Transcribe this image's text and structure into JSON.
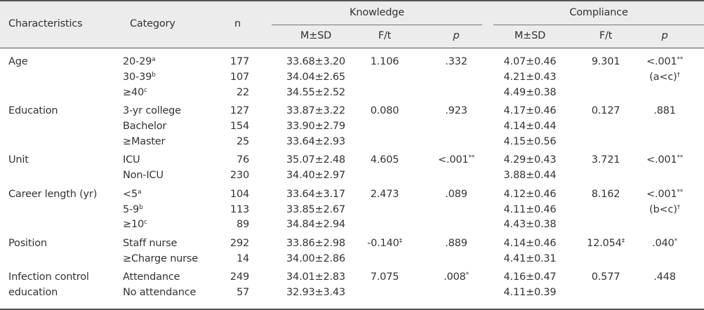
{
  "header": {
    "characteristics": "Characteristics",
    "category": "Category",
    "n": "n",
    "knowledge": "Knowledge",
    "compliance": "Compliance",
    "msd": "M±SD",
    "ft": "F/t",
    "p": "p"
  },
  "groups": [
    {
      "label": [
        "Age"
      ],
      "rows": [
        {
          "cat": "20-29",
          "cat_sup": "a",
          "n": "177",
          "k_msd": "33.68±3.20",
          "k_f": "1.106",
          "k_f_sup": "",
          "k_p": ".332",
          "k_p_sup": "",
          "c_msd": "4.07±0.46",
          "c_f": "9.301",
          "c_f_sup": "",
          "c_p": "<.001",
          "c_p_sup": "**"
        },
        {
          "cat": "30-39",
          "cat_sup": "b",
          "n": "107",
          "k_msd": "34.04±2.65",
          "k_f": "",
          "k_f_sup": "",
          "k_p": "",
          "k_p_sup": "",
          "c_msd": "4.21±0.43",
          "c_f": "",
          "c_f_sup": "",
          "c_p": "(a<c)",
          "c_p_sup": "†"
        },
        {
          "cat": "≥40",
          "cat_sup": "c",
          "n": "22",
          "k_msd": "34.55±2.52",
          "k_f": "",
          "k_f_sup": "",
          "k_p": "",
          "k_p_sup": "",
          "c_msd": "4.49±0.38",
          "c_f": "",
          "c_f_sup": "",
          "c_p": "",
          "c_p_sup": ""
        }
      ]
    },
    {
      "label": [
        "Education"
      ],
      "rows": [
        {
          "cat": "3-yr college",
          "cat_sup": "",
          "n": "127",
          "k_msd": "33.87±3.22",
          "k_f": "0.080",
          "k_f_sup": "",
          "k_p": ".923",
          "k_p_sup": "",
          "c_msd": "4.17±0.46",
          "c_f": "0.127",
          "c_f_sup": "",
          "c_p": ".881",
          "c_p_sup": ""
        },
        {
          "cat": "Bachelor",
          "cat_sup": "",
          "n": "154",
          "k_msd": "33.90±2.79",
          "k_f": "",
          "k_f_sup": "",
          "k_p": "",
          "k_p_sup": "",
          "c_msd": "4.14±0.44",
          "c_f": "",
          "c_f_sup": "",
          "c_p": "",
          "c_p_sup": ""
        },
        {
          "cat": "≥Master",
          "cat_sup": "",
          "n": "25",
          "k_msd": "33.64±2.93",
          "k_f": "",
          "k_f_sup": "",
          "k_p": "",
          "k_p_sup": "",
          "c_msd": "4.15±0.56",
          "c_f": "",
          "c_f_sup": "",
          "c_p": "",
          "c_p_sup": ""
        }
      ]
    },
    {
      "label": [
        "Unit"
      ],
      "rows": [
        {
          "cat": "ICU",
          "cat_sup": "",
          "n": "76",
          "k_msd": "35.07±2.48",
          "k_f": "4.605",
          "k_f_sup": "",
          "k_p": "<.001",
          "k_p_sup": "**",
          "c_msd": "4.29±0.43",
          "c_f": "3.721",
          "c_f_sup": "",
          "c_p": "<.001",
          "c_p_sup": "**"
        },
        {
          "cat": "Non-ICU",
          "cat_sup": "",
          "n": "230",
          "k_msd": "34.40±2.97",
          "k_f": "",
          "k_f_sup": "",
          "k_p": "",
          "k_p_sup": "",
          "c_msd": "3.88±0.44",
          "c_f": "",
          "c_f_sup": "",
          "c_p": "",
          "c_p_sup": ""
        }
      ]
    },
    {
      "label": [
        "Career length (yr)"
      ],
      "rows": [
        {
          "cat": "<5",
          "cat_sup": "a",
          "n": "104",
          "k_msd": "33.64±3.17",
          "k_f": "2.473",
          "k_f_sup": "",
          "k_p": ".089",
          "k_p_sup": "",
          "c_msd": "4.12±0.46",
          "c_f": "8.162",
          "c_f_sup": "",
          "c_p": "<.001",
          "c_p_sup": "**"
        },
        {
          "cat": "5-9",
          "cat_sup": "b",
          "n": "113",
          "k_msd": "33.85±2.67",
          "k_f": "",
          "k_f_sup": "",
          "k_p": "",
          "k_p_sup": "",
          "c_msd": "4.11±0.46",
          "c_f": "",
          "c_f_sup": "",
          "c_p": "(b<c)",
          "c_p_sup": "†"
        },
        {
          "cat": "≥10",
          "cat_sup": "c",
          "n": "89",
          "k_msd": "34.84±2.94",
          "k_f": "",
          "k_f_sup": "",
          "k_p": "",
          "k_p_sup": "",
          "c_msd": "4.43±0.38",
          "c_f": "",
          "c_f_sup": "",
          "c_p": "",
          "c_p_sup": ""
        }
      ]
    },
    {
      "label": [
        "Position"
      ],
      "rows": [
        {
          "cat": "Staff nurse",
          "cat_sup": "",
          "n": "292",
          "k_msd": "33.86±2.98",
          "k_f": "-0.140",
          "k_f_sup": "‡",
          "k_p": ".889",
          "k_p_sup": "",
          "c_msd": "4.14±0.46",
          "c_f": "12.054",
          "c_f_sup": "‡",
          "c_p": ".040",
          "c_p_sup": "*"
        },
        {
          "cat": "≥Charge nurse",
          "cat_sup": "",
          "n": "14",
          "k_msd": "34.00±2.86",
          "k_f": "",
          "k_f_sup": "",
          "k_p": "",
          "k_p_sup": "",
          "c_msd": "4.41±0.31",
          "c_f": "",
          "c_f_sup": "",
          "c_p": "",
          "c_p_sup": ""
        }
      ]
    },
    {
      "label": [
        "Infection control",
        "education"
      ],
      "rows": [
        {
          "cat": "Attendance",
          "cat_sup": "",
          "n": "249",
          "k_msd": "34.01±2.83",
          "k_f": "7.075",
          "k_f_sup": "",
          "k_p": ".008",
          "k_p_sup": "*",
          "c_msd": "4.16±0.47",
          "c_f": "0.577",
          "c_f_sup": "",
          "c_p": ".448",
          "c_p_sup": ""
        },
        {
          "cat": "No attendance",
          "cat_sup": "",
          "n": "57",
          "k_msd": "32.93±3.43",
          "k_f": "",
          "k_f_sup": "",
          "k_p": "",
          "k_p_sup": "",
          "c_msd": "4.11±0.39",
          "c_f": "",
          "c_f_sup": "",
          "c_p": "",
          "c_p_sup": ""
        }
      ]
    }
  ]
}
